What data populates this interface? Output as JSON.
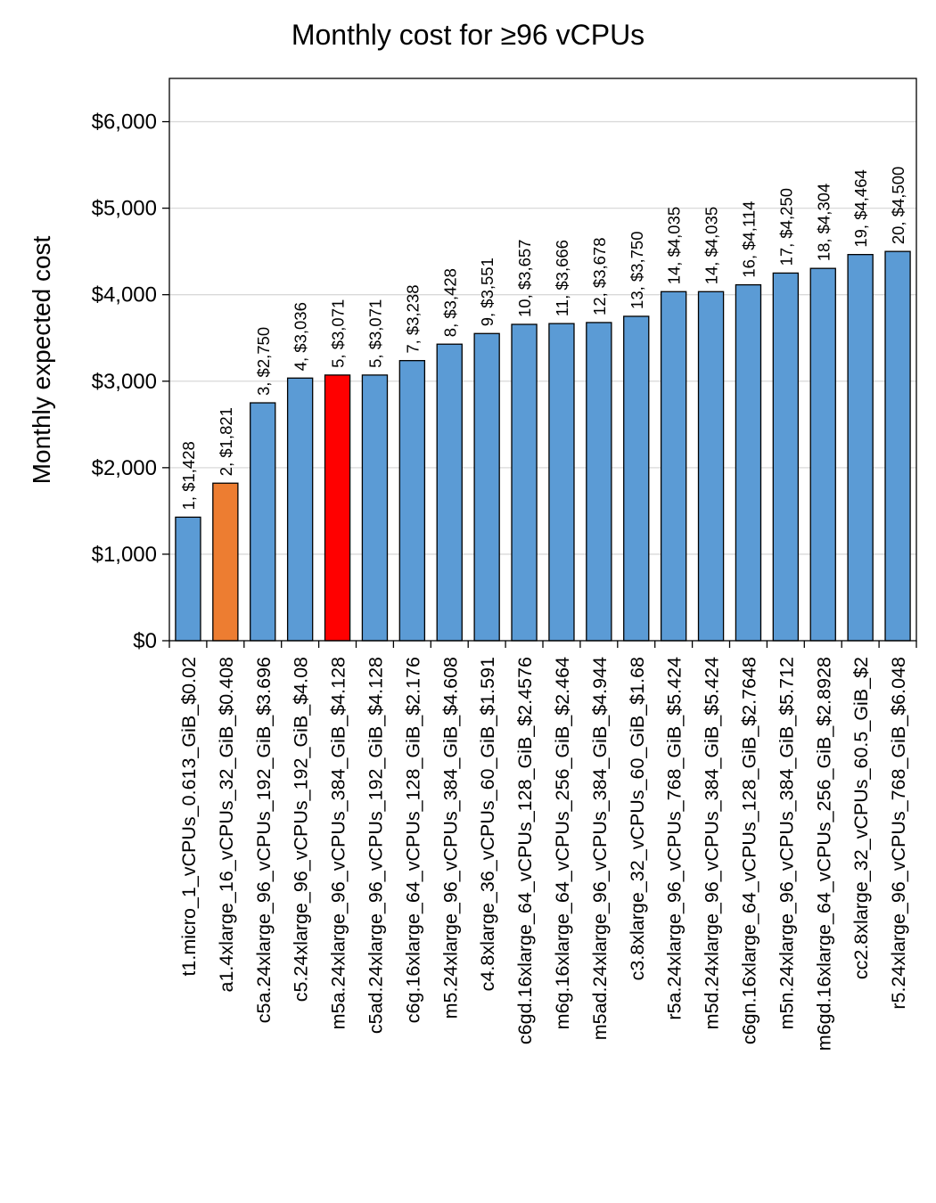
{
  "chart_data": {
    "type": "bar",
    "title": "Monthly cost for ≥96 vCPUs",
    "xlabel": "",
    "ylabel": "Monthly expected  cost",
    "ylim": [
      0,
      6500
    ],
    "y_ticks": [
      0,
      1000,
      2000,
      3000,
      4000,
      5000,
      6000
    ],
    "y_tick_labels": [
      "$0",
      "$1,000",
      "$2,000",
      "$3,000",
      "$4,000",
      "$5,000",
      "$6,000"
    ],
    "grid": true,
    "legend": "none",
    "colors": {
      "default": "#5b9bd5",
      "orange": "#ed7d31",
      "red": "#ff0000",
      "axis": "#000000",
      "grid": "#d9d9d9"
    },
    "categories": [
      "t1.micro_1_vCPUs_0.613_GiB_$0.02",
      "a1.4xlarge_16_vCPUs_32_GiB_$0.408",
      "c5a.24xlarge_96_vCPUs_192_GiB_$3.696",
      "c5.24xlarge_96_vCPUs_192_GiB_$4.08",
      "m5a.24xlarge_96_vCPUs_384_GiB_$4.128",
      "c5ad.24xlarge_96_vCPUs_192_GiB_$4.128",
      "c6g.16xlarge_64_vCPUs_128_GiB_$2.176",
      "m5.24xlarge_96_vCPUs_384_GiB_$4.608",
      "c4.8xlarge_36_vCPUs_60_GiB_$1.591",
      "c6gd.16xlarge_64_vCPUs_128_GiB_$2.4576",
      "m6g.16xlarge_64_vCPUs_256_GiB_$2.464",
      "m5ad.24xlarge_96_vCPUs_384_GiB_$4.944",
      "c3.8xlarge_32_vCPUs_60_GiB_$1.68",
      "r5a.24xlarge_96_vCPUs_768_GiB_$5.424",
      "m5d.24xlarge_96_vCPUs_384_GiB_$5.424",
      "c6gn.16xlarge_64_vCPUs_128_GiB_$2.7648",
      "m5n.24xlarge_96_vCPUs_384_GiB_$5.712",
      "m6gd.16xlarge_64_vCPUs_256_GiB_$2.8928",
      "cc2.8xlarge_32_vCPUs_60.5_GiB_$2",
      "r5.24xlarge_96_vCPUs_768_GiB_$6.048"
    ],
    "values": [
      1428,
      1821,
      2750,
      3036,
      3071,
      3071,
      3238,
      3428,
      3551,
      3657,
      3666,
      3678,
      3750,
      4035,
      4035,
      4114,
      4250,
      4304,
      4464,
      4500
    ],
    "bar_colors": [
      "#5b9bd5",
      "#ed7d31",
      "#5b9bd5",
      "#5b9bd5",
      "#ff0000",
      "#5b9bd5",
      "#5b9bd5",
      "#5b9bd5",
      "#5b9bd5",
      "#5b9bd5",
      "#5b9bd5",
      "#5b9bd5",
      "#5b9bd5",
      "#5b9bd5",
      "#5b9bd5",
      "#5b9bd5",
      "#5b9bd5",
      "#5b9bd5",
      "#5b9bd5",
      "#5b9bd5"
    ],
    "data_labels": [
      "1,  $1,428",
      "2,  $1,821",
      "3,  $2,750",
      "4,  $3,036",
      "5,  $3,071",
      "5,  $3,071",
      "7,  $3,238",
      "8,  $3,428",
      "9,  $3,551",
      "10,  $3,657",
      "11,  $3,666",
      "12,  $3,678",
      "13,  $3,750",
      "14,  $4,035",
      "14,  $4,035",
      "16,  $4,114",
      "17,  $4,250",
      "18,  $4,304",
      "19,  $4,464",
      "20,  $4,500"
    ]
  }
}
